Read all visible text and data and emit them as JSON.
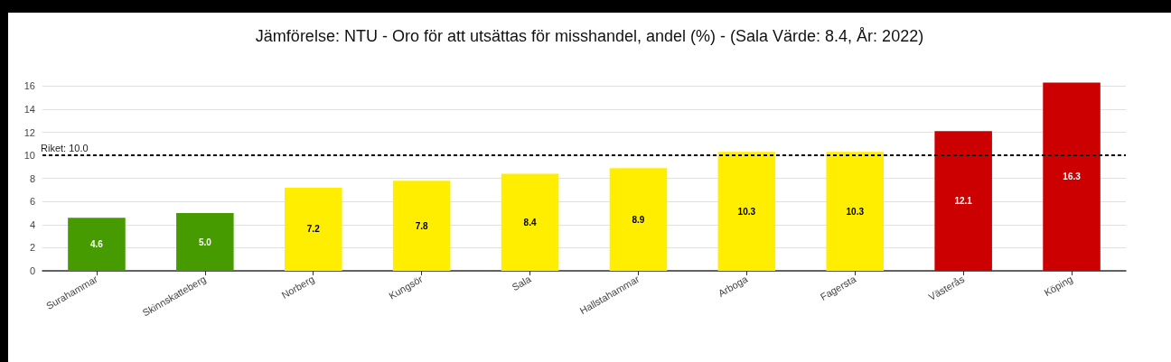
{
  "chart_data": {
    "type": "bar",
    "title": "Jämförelse: NTU - Oro för att utsättas för misshandel, andel (%) - (Sala Värde: 8.4, År: 2022)",
    "categories": [
      "Surahammar",
      "Skinnskatteberg",
      "Norberg",
      "Kungsör",
      "Sala",
      "Hallstahammar",
      "Arboga",
      "Fagersta",
      "Västerås",
      "Köping"
    ],
    "values": [
      4.6,
      5.0,
      7.2,
      7.8,
      8.4,
      8.9,
      10.3,
      10.3,
      12.1,
      16.3
    ],
    "colors": [
      "#459b00",
      "#459b00",
      "#ffee00",
      "#ffee00",
      "#ffee00",
      "#ffee00",
      "#ffee00",
      "#ffee00",
      "#cc0000",
      "#cc0000"
    ],
    "ylim": [
      0,
      16.5
    ],
    "yticks": [
      0,
      2,
      4,
      6,
      8,
      10,
      12,
      14,
      16
    ],
    "grid": "y",
    "value_labels": [
      "4.6",
      "5.0",
      "7.2",
      "7.8",
      "8.4",
      "8.9",
      "10.3",
      "10.3",
      "12.1",
      "16.3"
    ],
    "ref_lines": [
      {
        "axis": "y",
        "value": 10,
        "label": "Riket: 10.0",
        "color": "#000000",
        "line_style": "dashed"
      }
    ]
  }
}
